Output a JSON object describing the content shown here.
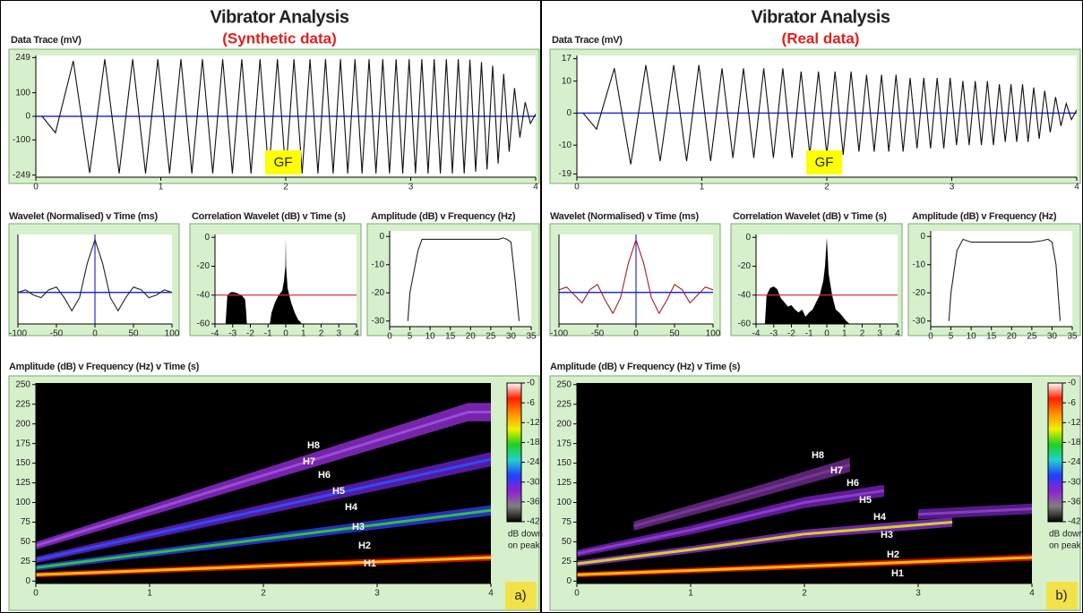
{
  "panels": [
    {
      "title": "Vibrator Analysis",
      "subtitle": "(Synthetic data)",
      "gf": "GF",
      "label": "a)"
    },
    {
      "title": "Vibrator Analysis",
      "subtitle": "(Real data)",
      "gf": "GF",
      "label": "b)"
    }
  ],
  "chart_data": [
    {
      "type": "line",
      "title": "Data Trace (mV)",
      "color": "#111",
      "hline": 0,
      "hline_color": "#2030d0",
      "xlim": [
        0,
        4
      ],
      "ylim": [
        -258,
        258
      ],
      "xticks": [
        0,
        1,
        2,
        3,
        4
      ],
      "yticks": [
        249,
        100,
        0,
        -100,
        -249
      ],
      "x": [
        0.05,
        0.157,
        0.3,
        0.431,
        0.552,
        0.667,
        0.775,
        0.878,
        0.976,
        1.07,
        1.161,
        1.249,
        1.333,
        1.416,
        1.495,
        1.573,
        1.648,
        1.722,
        1.794,
        1.864,
        1.933,
        2.0,
        2.066,
        2.131,
        2.194,
        2.257,
        2.318,
        2.379,
        2.438,
        2.496,
        2.554,
        2.611,
        2.667,
        2.722,
        2.776,
        2.83,
        2.883,
        2.936,
        2.987,
        3.038,
        3.089,
        3.139,
        3.188,
        3.237,
        3.285,
        3.333,
        3.381,
        3.428,
        3.474,
        3.52,
        3.566,
        3.611,
        3.656,
        3.7,
        3.744,
        3.788,
        3.831,
        3.874,
        3.916,
        3.958,
        4.0
      ],
      "values": [
        0,
        -70,
        235,
        -240,
        242,
        -242,
        242,
        -242,
        242,
        -242,
        242,
        -242,
        242,
        -242,
        242,
        -242,
        242,
        -242,
        242,
        -242,
        242,
        -242,
        242,
        -242,
        242,
        -242,
        242,
        -242,
        242,
        -242,
        242,
        -242,
        242,
        -242,
        242,
        -242,
        242,
        -242,
        242,
        -242,
        242,
        -242,
        242,
        -242,
        242,
        -242,
        242,
        -242,
        240,
        -235,
        230,
        -225,
        215,
        -200,
        180,
        -150,
        120,
        -90,
        60,
        -30,
        10
      ]
    },
    {
      "type": "line",
      "title": "Wavelet (Normalised) v Time (ms)",
      "color": "#222",
      "hline": 0,
      "hline_color": "#2030d0",
      "vline": 0,
      "xlim": [
        -100,
        100
      ],
      "ylim": [
        -0.6,
        1.1
      ],
      "xticks": [
        -100,
        -50,
        0,
        50,
        100
      ],
      "x": [
        -100,
        -90,
        -80,
        -70,
        -60,
        -50,
        -40,
        -30,
        -20,
        -10,
        0,
        10,
        20,
        30,
        40,
        50,
        60,
        70,
        80,
        90,
        100
      ],
      "values": [
        0,
        0.05,
        -0.05,
        -0.1,
        0.05,
        0.1,
        -0.1,
        -0.35,
        -0.1,
        0.55,
        1,
        0.55,
        -0.1,
        -0.35,
        -0.1,
        0.1,
        0.05,
        -0.1,
        -0.05,
        0.05,
        0
      ]
    },
    {
      "type": "area",
      "title": "Correlation Wavelet (dB) v Time (s)",
      "color": "#000",
      "hline": -40,
      "hline_color": "#e03030",
      "xlim": [
        -4,
        4
      ],
      "ylim": [
        -60,
        2
      ],
      "xticks": [
        -4,
        -3,
        -2,
        -1,
        0,
        1,
        2,
        3,
        4
      ],
      "yticks": [
        0,
        -20,
        -40,
        -60
      ],
      "x": [
        -3.4,
        -3.3,
        -3.1,
        -2.9,
        -2.7,
        -2.5,
        -2.3,
        -2.25,
        -2.2,
        -0.9,
        -0.8,
        -0.6,
        -0.4,
        -0.2,
        -0.1,
        -0.02,
        0,
        0.02,
        0.1,
        0.3,
        0.5,
        0.7,
        0.85,
        0.9
      ],
      "values": [
        -60,
        -40,
        -38,
        -38,
        -39,
        -40,
        -43,
        -50,
        -60,
        -60,
        -52,
        -45,
        -40,
        -37,
        -30,
        -20,
        0,
        -20,
        -35,
        -45,
        -52,
        -57,
        -59,
        -60
      ]
    },
    {
      "type": "line",
      "title": "Amplitude (dB) v Frequency (Hz)",
      "color": "#222",
      "xlim": [
        0,
        35
      ],
      "ylim": [
        -32,
        2
      ],
      "xticks": [
        0,
        5,
        10,
        15,
        20,
        25,
        30,
        35
      ],
      "yticks": [
        0,
        -10,
        -20,
        -30
      ],
      "x": [
        4.5,
        5,
        7,
        8,
        10,
        15,
        20,
        25,
        27,
        28,
        29,
        30,
        31,
        32
      ],
      "values": [
        -30,
        -20,
        -5,
        -1,
        -1,
        -1,
        -1,
        -1,
        -1,
        -0.5,
        -1,
        -2,
        -15,
        -30
      ]
    },
    {
      "type": "spectrogram",
      "title": "Amplitude (dB) v Frequency (Hz) v Time (s)",
      "xlim": [
        0,
        4
      ],
      "ylim": [
        -3,
        252
      ],
      "xticks": [
        0,
        1,
        2,
        3,
        4
      ],
      "yticks": [
        0,
        25,
        50,
        75,
        100,
        125,
        150,
        175,
        200,
        225,
        250
      ],
      "series": [
        {
          "color": "#e01010",
          "core": "#ffd000",
          "x": [
            0,
            4
          ],
          "values": [
            8,
            30
          ]
        },
        {
          "color": "#3038e0",
          "core": "#30d030",
          "x": [
            0,
            4
          ],
          "values": [
            17,
            90
          ]
        },
        {
          "color": "#6020c0",
          "core": "#3050ff",
          "x": [
            0,
            4
          ],
          "values": [
            27,
            155
          ]
        },
        {
          "color": "#8a2cc8",
          "core": "#a050e0",
          "x": [
            0,
            3.8,
            4
          ],
          "values": [
            45,
            215,
            215
          ]
        }
      ],
      "annotations": [
        "H8",
        "H7",
        "H6",
        "H5",
        "H4",
        "H3",
        "H2",
        "H1"
      ],
      "colorbar": {
        "ticks": [
          {
            "value": 0,
            "label": "-0"
          },
          -6,
          -12,
          -18,
          -24,
          -30,
          -36,
          -42
        ],
        "colors": [
          "#ffffff",
          "#ff2000",
          "#ff9000",
          "#f0f000",
          "#20d020",
          "#20d0d0",
          "#2040ff",
          "#9020d0",
          "#808080",
          "#000000"
        ],
        "label": [
          "dB down",
          "on peak"
        ]
      }
    },
    {
      "type": "line",
      "title": "Data Trace (mV)",
      "color": "#111",
      "hline": 0,
      "hline_color": "#2030d0",
      "xlim": [
        0,
        4
      ],
      "ylim": [
        -20,
        18
      ],
      "xticks": [
        0,
        1,
        2,
        3,
        4
      ],
      "yticks": [
        17,
        10,
        0,
        -10,
        -19
      ],
      "x": [
        0.05,
        0.157,
        0.3,
        0.431,
        0.552,
        0.667,
        0.775,
        0.878,
        0.976,
        1.07,
        1.161,
        1.249,
        1.333,
        1.416,
        1.495,
        1.573,
        1.648,
        1.722,
        1.794,
        1.864,
        1.933,
        2.0,
        2.066,
        2.131,
        2.194,
        2.257,
        2.318,
        2.379,
        2.438,
        2.496,
        2.554,
        2.611,
        2.667,
        2.722,
        2.776,
        2.83,
        2.883,
        2.936,
        2.987,
        3.038,
        3.089,
        3.139,
        3.188,
        3.237,
        3.285,
        3.333,
        3.381,
        3.428,
        3.474,
        3.52,
        3.566,
        3.611,
        3.656,
        3.7,
        3.744,
        3.788,
        3.831,
        3.874,
        3.916,
        3.958,
        4.0
      ],
      "values": [
        0,
        -5,
        14,
        -16,
        15,
        -15,
        15,
        -15,
        15,
        -15,
        14,
        -14,
        14,
        -14,
        14,
        -14,
        14,
        -14,
        13,
        -13,
        13,
        -13,
        13,
        -13,
        13,
        -12,
        12,
        -12,
        12,
        -12,
        12,
        -12,
        11,
        -11,
        11,
        -11,
        11,
        -11,
        11,
        -10,
        10,
        -10,
        10,
        -10,
        10,
        -10,
        9,
        -9,
        9,
        -9,
        9,
        -9,
        8,
        -8,
        7,
        -6,
        5,
        -4,
        3,
        -2,
        1
      ]
    },
    {
      "type": "line",
      "title": "Wavelet (Normalised) v Time (ms)",
      "color": "#a02020",
      "hline": 0,
      "hline_color": "#2030d0",
      "vline": 0,
      "xlim": [
        -100,
        100
      ],
      "ylim": [
        -0.6,
        1.1
      ],
      "xticks": [
        -100,
        -50,
        0,
        50,
        100
      ],
      "x": [
        -100,
        -90,
        -80,
        -70,
        -60,
        -50,
        -40,
        -30,
        -20,
        -10,
        0,
        10,
        20,
        30,
        40,
        50,
        60,
        70,
        80,
        90,
        100
      ],
      "values": [
        0.05,
        0.1,
        -0.05,
        -0.2,
        0.05,
        0.15,
        -0.15,
        -0.4,
        -0.1,
        0.55,
        1,
        0.55,
        -0.1,
        -0.4,
        -0.15,
        0.15,
        0.05,
        -0.2,
        -0.05,
        0.1,
        0.05
      ]
    },
    {
      "type": "area",
      "title": "Correlation Wavelet (dB) v Time (s)",
      "color": "#000",
      "hline": -40,
      "hline_color": "#e03030",
      "xlim": [
        -4,
        4
      ],
      "ylim": [
        -60,
        2
      ],
      "xticks": [
        -4,
        -3,
        -2,
        -1,
        0,
        1,
        2,
        3,
        4
      ],
      "yticks": [
        0,
        -20,
        -40,
        -60
      ],
      "x": [
        -3.5,
        -3.4,
        -3.2,
        -3,
        -2.8,
        -2.6,
        -2.4,
        -2.2,
        -2,
        -1.8,
        -1.6,
        -1.4,
        -1.2,
        -1,
        -0.8,
        -0.6,
        -0.4,
        -0.2,
        -0.1,
        0,
        0.1,
        0.3,
        0.5,
        0.7,
        0.9,
        1.1,
        1.3
      ],
      "values": [
        -60,
        -40,
        -35,
        -34,
        -36,
        -42,
        -45,
        -48,
        -47,
        -50,
        -52,
        -50,
        -55,
        -52,
        -50,
        -45,
        -40,
        -30,
        -20,
        0,
        -25,
        -40,
        -50,
        -52,
        -55,
        -58,
        -60
      ]
    },
    {
      "type": "line",
      "title": "Amplitude (dB) v Frequency (Hz)",
      "color": "#222",
      "xlim": [
        0,
        35
      ],
      "ylim": [
        -32,
        2
      ],
      "xticks": [
        0,
        5,
        10,
        15,
        20,
        25,
        30,
        35
      ],
      "yticks": [
        0,
        -10,
        -20,
        -30
      ],
      "x": [
        4.5,
        5,
        6.5,
        8,
        10,
        15,
        20,
        25,
        27.5,
        29,
        30,
        31,
        32
      ],
      "values": [
        -30,
        -20,
        -5,
        -1,
        -2,
        -2,
        -2,
        -2,
        -1.5,
        -1,
        -2,
        -10,
        -30
      ]
    },
    {
      "type": "spectrogram",
      "title": "Amplitude (dB) v Frequency (Hz) v Time (s)",
      "xlim": [
        0,
        4
      ],
      "ylim": [
        -3,
        252
      ],
      "xticks": [
        0,
        1,
        2,
        3,
        4
      ],
      "yticks": [
        0,
        25,
        50,
        75,
        100,
        125,
        150,
        175,
        200,
        225,
        250
      ],
      "series": [
        {
          "color": "#e01010",
          "core": "#ffd000",
          "x": [
            0,
            4
          ],
          "values": [
            8,
            30
          ]
        },
        {
          "color": "#8030c0",
          "core": "#e0e020",
          "x": [
            0,
            1,
            2,
            3.3
          ],
          "values": [
            22,
            40,
            60,
            75
          ]
        },
        {
          "color": "#7020b0",
          "core": "#9040d0",
          "x": [
            0,
            1,
            2,
            2.7
          ],
          "values": [
            35,
            65,
            100,
            115
          ]
        },
        {
          "color": "#6a2a8a",
          "core": "#7a3a9a",
          "x": [
            0.5,
            1.5,
            2.4
          ],
          "values": [
            70,
            110,
            148
          ]
        },
        {
          "color": "#6020a0",
          "core": "#9040c0",
          "x": [
            3,
            4
          ],
          "values": [
            85,
            92
          ]
        }
      ],
      "annotations": [
        "H8",
        "H7",
        "H6",
        "H5",
        "H4",
        "H3",
        "H2",
        "H1"
      ],
      "colorbar": {
        "ticks": [
          {
            "value": 0,
            "label": "-0"
          },
          -6,
          -12,
          -18,
          -24,
          -30,
          -36,
          -42
        ],
        "colors": [
          "#ffffff",
          "#ff2000",
          "#ff9000",
          "#f0f000",
          "#20d020",
          "#20d0d0",
          "#2040ff",
          "#9020d0",
          "#808080",
          "#000000"
        ],
        "label": [
          "dB down",
          "on peak"
        ]
      }
    }
  ]
}
